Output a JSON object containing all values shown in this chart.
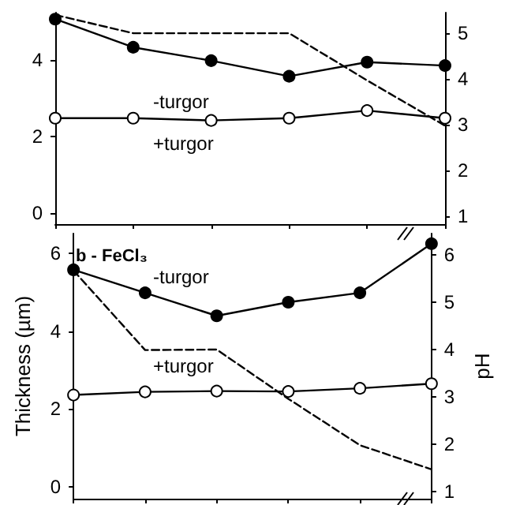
{
  "chart_data": [
    {
      "type": "line",
      "categories": [
        null,
        null,
        null,
        null,
        null,
        null
      ],
      "ylim": [
        -0.3,
        5.25
      ],
      "yticks": [
        0,
        2,
        4
      ],
      "y2lim": [
        0.83,
        5.45
      ],
      "y2ticks": [
        1,
        2,
        3,
        4,
        5
      ],
      "tick_labels": "y",
      "grid": false,
      "marker": "circle",
      "series": [
        {
          "color": "#000000",
          "values": [
            5.08,
            4.34,
            3.99,
            3.58,
            3.95,
            3.86
          ]
        },
        {
          "color": "#ffffff",
          "values": [
            2.48,
            2.48,
            2.42,
            2.48,
            2.68,
            2.48
          ]
        },
        {
          "color": "#000000",
          "axis": "y2",
          "marker": "none",
          "line_style": "dashed",
          "values": [
            5.4,
            5.0,
            5.0,
            5.0,
            3.97,
            2.98
          ]
        }
      ],
      "annotations": [
        "-turgor",
        "+turgor"
      ]
    },
    {
      "type": "line",
      "title": "b - FeCl₃",
      "ylabel": "Thickness (µm)",
      "y2label": "pH",
      "categories": [
        null,
        null,
        null,
        null,
        null,
        null
      ],
      "ylim": [
        -0.3,
        6.5
      ],
      "yticks": [
        0,
        2,
        4,
        6
      ],
      "y2lim": [
        0.85,
        6.45
      ],
      "y2ticks": [
        1,
        2,
        3,
        4,
        5,
        6
      ],
      "tick_labels": "y",
      "grid": false,
      "marker": "circle",
      "series": [
        {
          "color": "#000000",
          "values": [
            5.57,
            4.98,
            4.39,
            4.74,
            4.98,
            6.24
          ]
        },
        {
          "color": "#ffffff",
          "values": [
            2.36,
            2.44,
            2.46,
            2.45,
            2.53,
            2.65
          ]
        },
        {
          "color": "#000000",
          "axis": "y2",
          "marker": "none",
          "line_style": "dashed",
          "values": [
            5.67,
            3.99,
            4.0,
            2.96,
            1.98,
            1.47
          ]
        }
      ],
      "annotations": [
        "-turgor",
        "+turgor"
      ]
    }
  ]
}
